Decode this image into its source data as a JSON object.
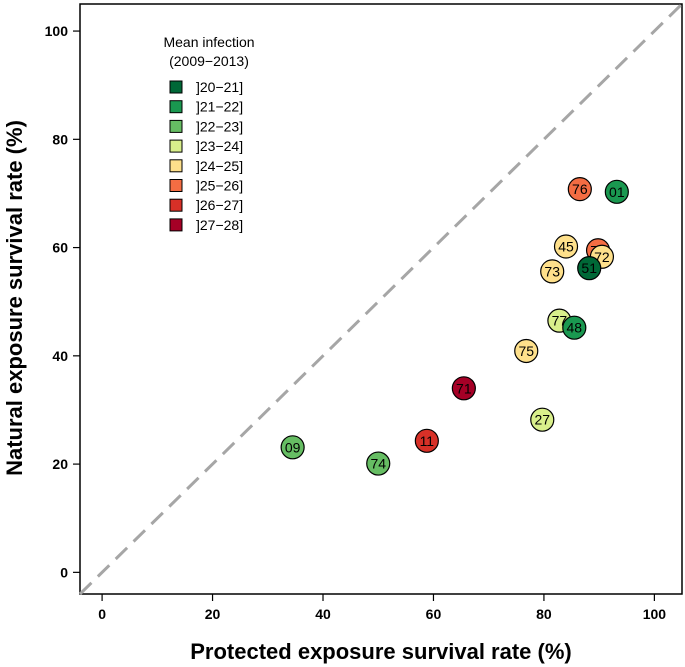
{
  "chart_data": {
    "type": "scatter",
    "title": "",
    "xlabel": "Protected exposure survival rate (%)",
    "ylabel": "Natural exposure survival rate (%)",
    "xlim": [
      -4,
      105
    ],
    "ylim": [
      -4,
      105
    ],
    "xticks": [
      0,
      20,
      40,
      60,
      80,
      100
    ],
    "yticks": [
      0,
      20,
      40,
      60,
      80,
      100
    ],
    "reference_line": "y = x (dashed grey)",
    "grid": false,
    "legend": {
      "title_line1": "Mean infection",
      "title_line2": "(2009−2013)",
      "position": "top-left",
      "entries": [
        {
          "label": "]20−21]",
          "color": "#006837"
        },
        {
          "label": "]21−22]",
          "color": "#1a9850"
        },
        {
          "label": "]22−23]",
          "color": "#66bd63"
        },
        {
          "label": "]23−24]",
          "color": "#d9ef8b"
        },
        {
          "label": "]24−25]",
          "color": "#fee08b"
        },
        {
          "label": "]25−26]",
          "color": "#f46d43"
        },
        {
          "label": "]26−27]",
          "color": "#d73027"
        },
        {
          "label": "]27−28]",
          "color": "#a50026"
        }
      ]
    },
    "points": [
      {
        "label": "01",
        "x": 93.2,
        "y": 70.3,
        "class": 1
      },
      {
        "label": "76",
        "x": 86.5,
        "y": 70.8,
        "class": 5
      },
      {
        "label": "70",
        "x": 89.8,
        "y": 59.5,
        "class": 5
      },
      {
        "label": "72",
        "x": 90.5,
        "y": 58.3,
        "class": 4
      },
      {
        "label": "45",
        "x": 84.0,
        "y": 60.2,
        "class": 4
      },
      {
        "label": "73",
        "x": 81.5,
        "y": 55.6,
        "class": 4
      },
      {
        "label": "51",
        "x": 88.2,
        "y": 56.2,
        "class": 0
      },
      {
        "label": "77",
        "x": 82.8,
        "y": 46.5,
        "class": 3
      },
      {
        "label": "48",
        "x": 85.5,
        "y": 45.2,
        "class": 1
      },
      {
        "label": "75",
        "x": 76.8,
        "y": 40.9,
        "class": 4
      },
      {
        "label": "27",
        "x": 79.7,
        "y": 28.2,
        "class": 3
      },
      {
        "label": "71",
        "x": 65.5,
        "y": 34.0,
        "class": 7
      },
      {
        "label": "11",
        "x": 58.8,
        "y": 24.3,
        "class": 6
      },
      {
        "label": "74",
        "x": 50.0,
        "y": 20.1,
        "class": 2
      },
      {
        "label": "09",
        "x": 34.5,
        "y": 23.1,
        "class": 2
      }
    ]
  }
}
